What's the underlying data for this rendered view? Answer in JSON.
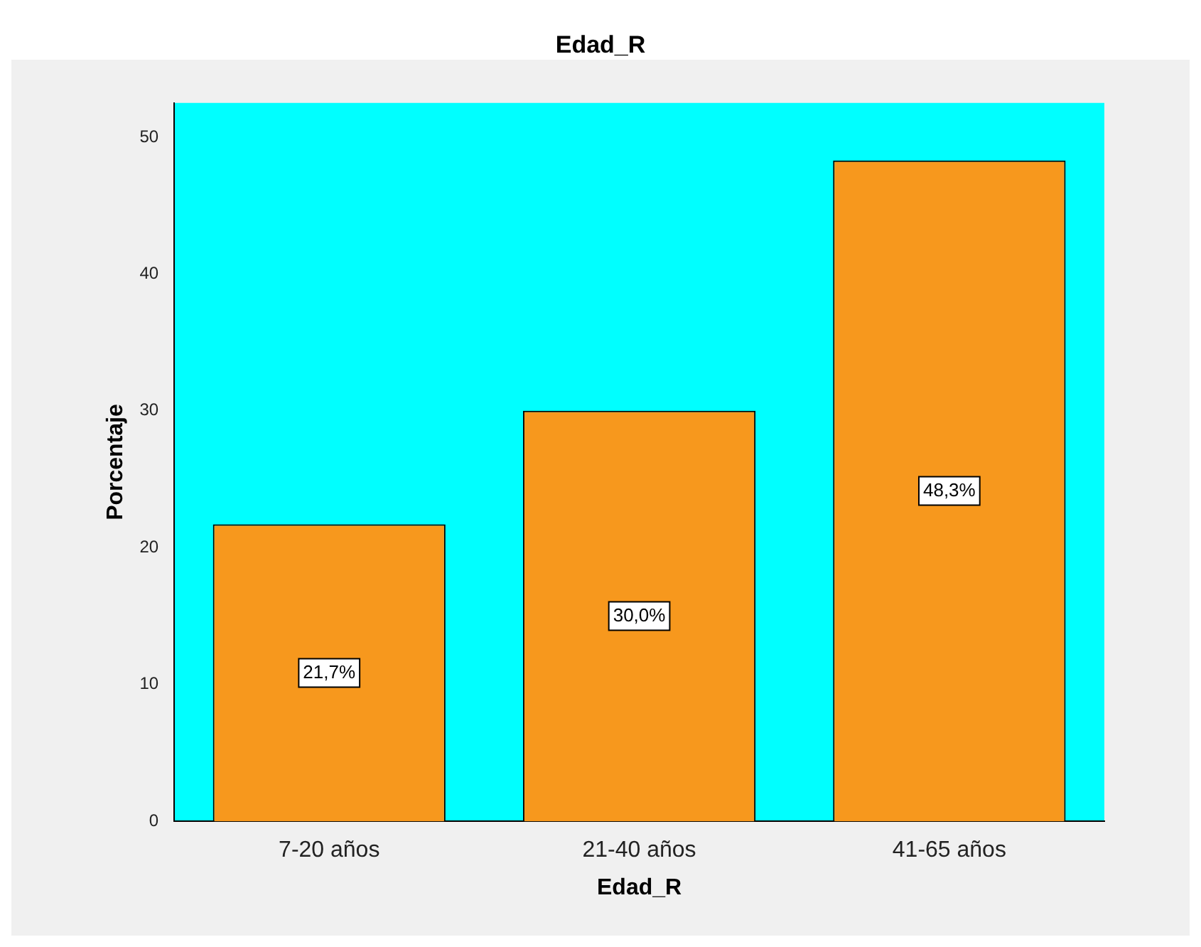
{
  "chart_data": {
    "type": "bar",
    "title": "Edad_R",
    "xlabel": "Edad_R",
    "ylabel": "Porcentaje",
    "categories": [
      "7-20 años",
      "21-40 años",
      "41-65 años"
    ],
    "values": [
      21.7,
      30.0,
      48.3
    ],
    "value_labels": [
      "21,7%",
      "30,0%",
      "48,3%"
    ],
    "color": "#f7981d",
    "ylim": [
      0,
      52.5
    ],
    "yticks": [
      0,
      10,
      20,
      30,
      40,
      50
    ],
    "grid": false,
    "legend": false
  }
}
